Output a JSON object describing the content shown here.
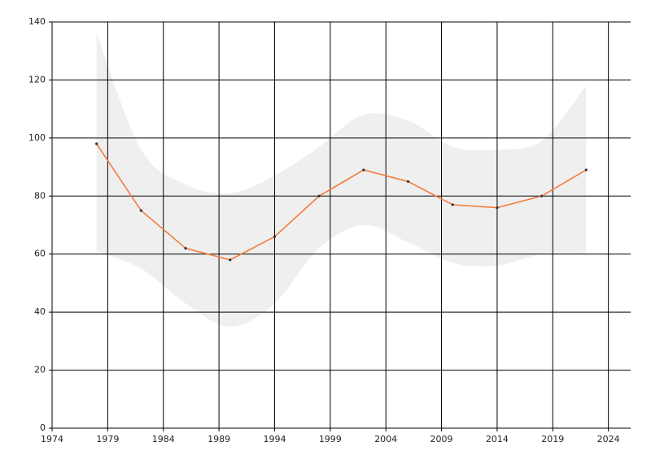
{
  "chart_data": {
    "type": "line",
    "x": [
      1978,
      1982,
      1986,
      1990,
      1994,
      1998,
      2002,
      2006,
      2010,
      2014,
      2018,
      2022
    ],
    "values": [
      98,
      75,
      62,
      58,
      66,
      80,
      89,
      85,
      77,
      76,
      80,
      89
    ],
    "band_upper": [
      136,
      96,
      84,
      81,
      87,
      97,
      108,
      106,
      97,
      96,
      99,
      118
    ],
    "band_lower": [
      61,
      55,
      43,
      35,
      43,
      62,
      70,
      64,
      57,
      56,
      60,
      60
    ],
    "color": "#f47c3c",
    "band_color": "#efefef",
    "marker_color": "#333333",
    "xlim": [
      1974,
      2026
    ],
    "xticks": [
      1974,
      1979,
      1984,
      1989,
      1994,
      1999,
      2004,
      2009,
      2014,
      2019,
      2024
    ],
    "ylim": [
      0,
      140
    ],
    "yticks": [
      0,
      20,
      40,
      60,
      80,
      100,
      120,
      140
    ],
    "grid": true
  }
}
